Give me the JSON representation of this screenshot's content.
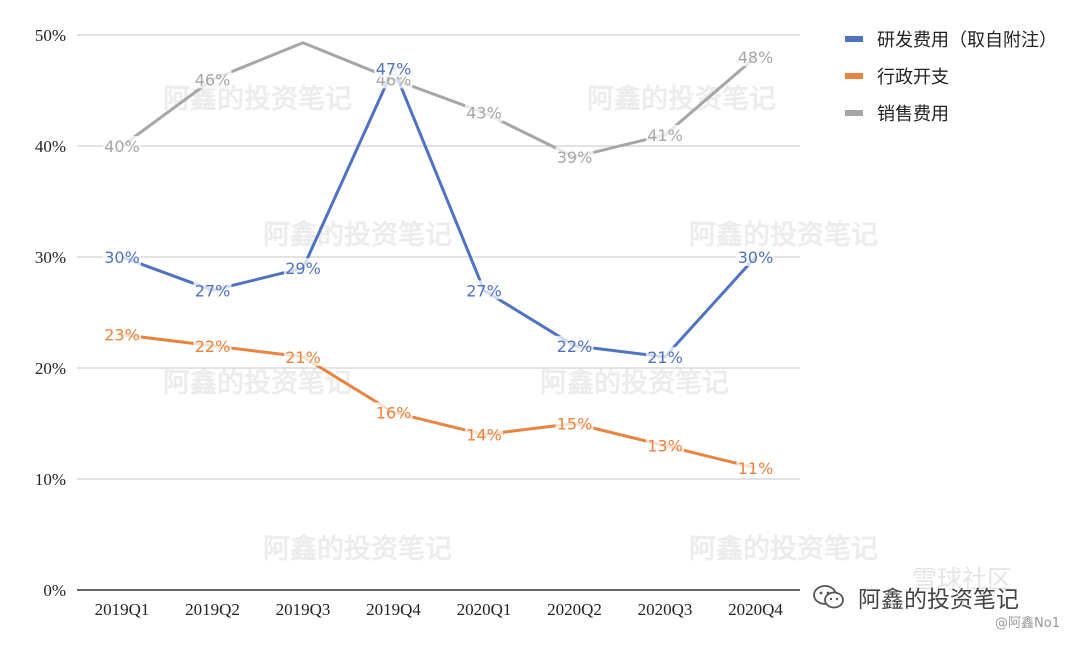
{
  "chart_data": {
    "type": "line",
    "categories": [
      "2019Q1",
      "2019Q2",
      "2019Q3",
      "2019Q4",
      "2020Q1",
      "2020Q2",
      "2020Q3",
      "2020Q4"
    ],
    "y_ticks": [
      "0%",
      "10%",
      "20%",
      "30%",
      "40%",
      "50%"
    ],
    "ylim": [
      0,
      50
    ],
    "grid": true,
    "legend_position": "top-right",
    "series": [
      {
        "name": "研发费用（取自附注）",
        "color": "#4f73c0",
        "values": [
          30,
          27,
          29,
          47,
          27,
          22,
          21,
          30
        ],
        "labels": [
          "30%",
          "27%",
          "29%",
          "47%",
          "27%",
          "22%",
          "21%",
          "30%"
        ]
      },
      {
        "name": "行政开支",
        "color": "#e8843f",
        "values": [
          23,
          22,
          21,
          16,
          14,
          15,
          13,
          11
        ],
        "labels": [
          "23%",
          "22%",
          "21%",
          "16%",
          "14%",
          "15%",
          "13%",
          "11%"
        ]
      },
      {
        "name": "销售费用",
        "color": "#a6a6a6",
        "values": [
          40,
          46,
          49.3,
          46,
          43,
          39,
          41,
          48
        ],
        "labels": [
          "40%",
          "46%",
          "",
          "46%",
          "43%",
          "39%",
          "41%",
          "48%"
        ]
      }
    ]
  },
  "watermark": {
    "text": "阿鑫的投资笔记",
    "corner_text": "雪球社区"
  },
  "brand": {
    "icon": "wechat-icon",
    "name": "阿鑫的投资笔记",
    "handle": "@阿鑫No1"
  }
}
